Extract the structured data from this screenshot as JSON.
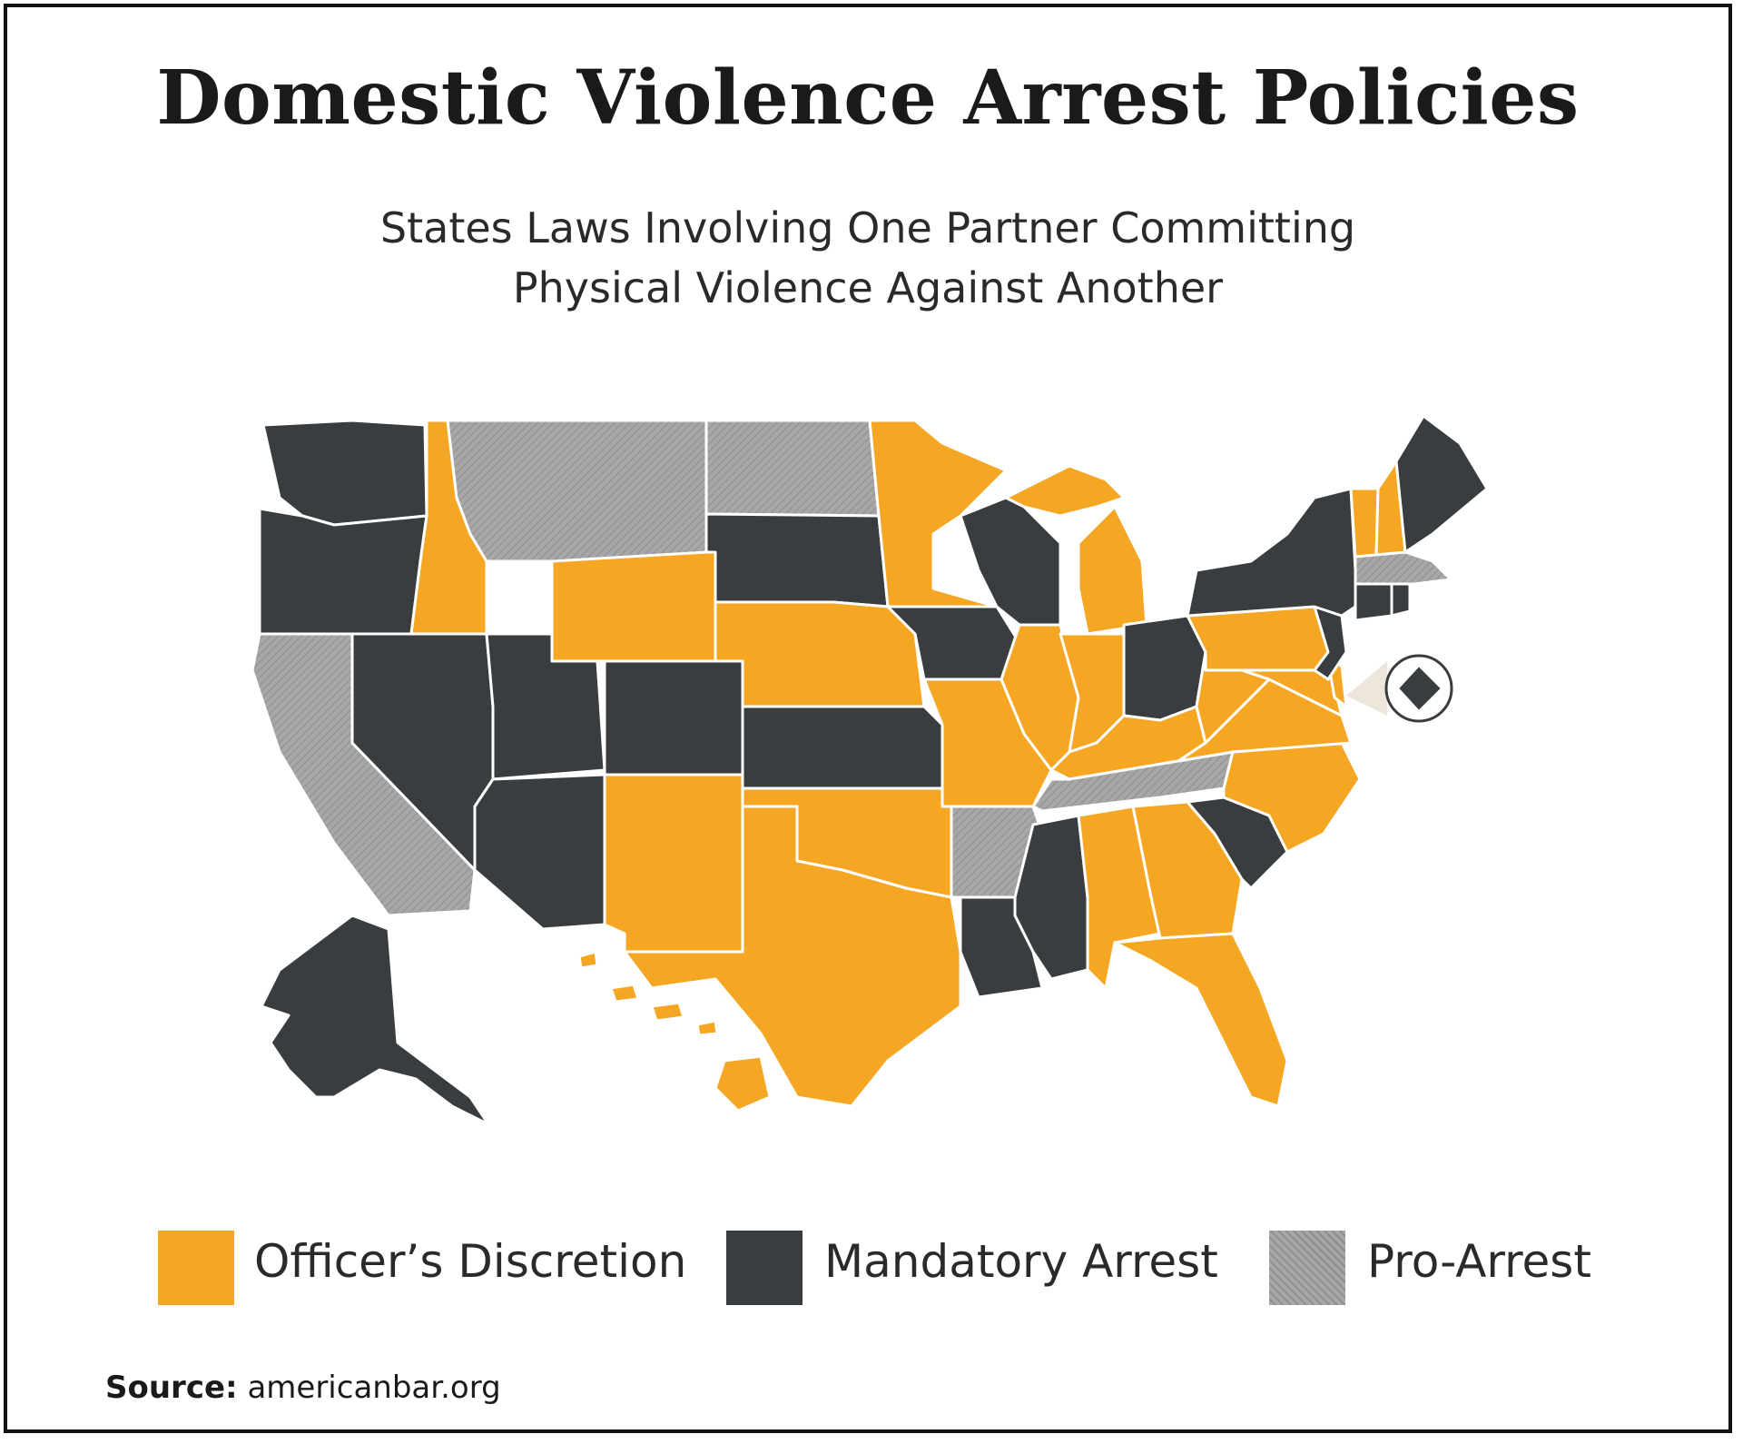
{
  "title": "Domestic Violence Arrest Policies",
  "subtitle": {
    "line1": "States Laws Involving One Partner Committing",
    "line2": "Physical Violence Against Another"
  },
  "colors": {
    "officers_discretion": "#F5A623",
    "mandatory_arrest": "#3A3D40",
    "pro_arrest": "#A7A7A7",
    "border": "#ffffff"
  },
  "legend": [
    {
      "key": "officers_discretion",
      "label": "Officer’s Discretion"
    },
    {
      "key": "mandatory_arrest",
      "label": "Mandatory Arrest"
    },
    {
      "key": "pro_arrest",
      "label": "Pro-Arrest"
    }
  ],
  "states": {
    "WA": "mandatory_arrest",
    "OR": "mandatory_arrest",
    "CA": "pro_arrest",
    "ID": "officers_discretion",
    "NV": "mandatory_arrest",
    "MT": "pro_arrest",
    "WY": "officers_discretion",
    "UT": "mandatory_arrest",
    "AZ": "mandatory_arrest",
    "CO": "mandatory_arrest",
    "NM": "officers_discretion",
    "ND": "pro_arrest",
    "SD": "mandatory_arrest",
    "NE": "officers_discretion",
    "KS": "mandatory_arrest",
    "OK": "officers_discretion",
    "TX": "officers_discretion",
    "MN": "officers_discretion",
    "IA": "mandatory_arrest",
    "MO": "officers_discretion",
    "AR": "pro_arrest",
    "LA": "mandatory_arrest",
    "WI": "mandatory_arrest",
    "IL": "officers_discretion",
    "MI": "officers_discretion",
    "IN": "officers_discretion",
    "OH": "mandatory_arrest",
    "KY": "officers_discretion",
    "TN": "pro_arrest",
    "MS": "mandatory_arrest",
    "AL": "officers_discretion",
    "GA": "officers_discretion",
    "FL": "officers_discretion",
    "SC": "mandatory_arrest",
    "NC": "officers_discretion",
    "VA": "officers_discretion",
    "WV": "officers_discretion",
    "PA": "officers_discretion",
    "NY": "mandatory_arrest",
    "NJ": "mandatory_arrest",
    "DE": "officers_discretion",
    "MD": "officers_discretion",
    "DC": "mandatory_arrest",
    "CT": "mandatory_arrest",
    "RI": "mandatory_arrest",
    "MA": "pro_arrest",
    "VT": "officers_discretion",
    "NH": "officers_discretion",
    "ME": "mandatory_arrest",
    "AK": "mandatory_arrest",
    "HI": "officers_discretion"
  },
  "source": {
    "label": "Source:",
    "text": "americanbar.org"
  }
}
